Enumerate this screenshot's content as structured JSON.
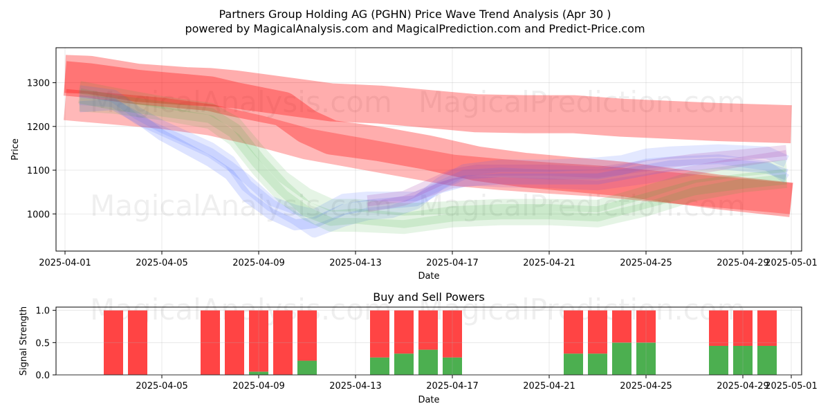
{
  "chart_data": [
    {
      "type": "area",
      "title": "Partners Group Holding AG (PGHN) Price Wave Trend Analysis (Apr 30 )",
      "subtitle": "powered by MagicalAnalysis.com and MagicalPrediction.com and Predict-Price.com",
      "xlabel": "Date",
      "ylabel": "Price",
      "x_ticks": [
        "2025-04-01",
        "2025-04-05",
        "2025-04-09",
        "2025-04-13",
        "2025-04-17",
        "2025-04-21",
        "2025-04-25",
        "2025-04-29",
        "2025-05-01"
      ],
      "y_ticks": [
        1000,
        1100,
        1200,
        1300
      ],
      "xlim_days": [
        -0.4,
        30.4
      ],
      "ylim": [
        915,
        1380
      ],
      "watermarks": [
        "MagicalAnalysis.com",
        "MagicalPrediction.com",
        "MagicalAnalysis.com",
        "MagicalPrediction.com"
      ],
      "series": [
        {
          "name": "red-wave-1",
          "color": "#ff0000",
          "opacity": 0.32,
          "width": 55,
          "x": [
            0,
            1,
            3,
            5,
            6,
            7,
            9,
            11,
            13,
            15,
            17,
            19,
            21,
            23,
            25,
            27,
            30
          ],
          "y": [
            1320,
            1318,
            1300,
            1292,
            1290,
            1285,
            1270,
            1255,
            1250,
            1240,
            1230,
            1228,
            1228,
            1220,
            1215,
            1210,
            1205
          ]
        },
        {
          "name": "red-wave-2",
          "color": "#ff0000",
          "opacity": 0.32,
          "width": 50,
          "x": [
            0,
            1,
            3,
            5,
            6,
            7,
            9,
            10,
            11,
            13,
            15,
            17,
            19,
            21,
            23,
            25,
            27,
            30
          ],
          "y": [
            1310,
            1305,
            1290,
            1280,
            1275,
            1262,
            1240,
            1200,
            1175,
            1160,
            1140,
            1115,
            1100,
            1090,
            1080,
            1065,
            1050,
            1032
          ]
        },
        {
          "name": "red-wave-3",
          "color": "#ff0000",
          "opacity": 0.28,
          "width": 45,
          "x": [
            0,
            2,
            4,
            6,
            8,
            10,
            12,
            14,
            16,
            18,
            20,
            22,
            24,
            26,
            28,
            30
          ],
          "y": [
            1250,
            1240,
            1230,
            1215,
            1190,
            1160,
            1140,
            1120,
            1100,
            1090,
            1082,
            1075,
            1065,
            1055,
            1045,
            1035
          ]
        },
        {
          "name": "blue-wave-1",
          "color": "#4466ff",
          "opacity": 0.18,
          "width": 16,
          "x": [
            0.6,
            2,
            3,
            4,
            5,
            6,
            6.8,
            7.5,
            8.5,
            9.5,
            10.3,
            11.5,
            12.5,
            13.5,
            14.5,
            15.5,
            16.5,
            18,
            20,
            22,
            23,
            24,
            25,
            27,
            29,
            29.8
          ],
          "y": [
            1245,
            1250,
            1220,
            1180,
            1150,
            1120,
            1090,
            1040,
            1000,
            975,
            980,
            1010,
            1020,
            1025,
            1030,
            1060,
            1075,
            1080,
            1080,
            1080,
            1090,
            1100,
            1110,
            1115,
            1105,
            1090
          ]
        },
        {
          "name": "blue-wave-2",
          "color": "#4466ff",
          "opacity": 0.15,
          "width": 18,
          "x": [
            0.6,
            2,
            3,
            4,
            5,
            6,
            6.8,
            7.5,
            8.5,
            9.5,
            10.3,
            11.5,
            12.5,
            13.5,
            14.5,
            15.5,
            16.5,
            18,
            20,
            22,
            23,
            24,
            25,
            27,
            29,
            29.8
          ],
          "y": [
            1280,
            1270,
            1230,
            1200,
            1175,
            1150,
            1120,
            1065,
            1020,
            990,
            960,
            985,
            1000,
            1005,
            1025,
            1070,
            1100,
            1110,
            1110,
            1115,
            1120,
            1135,
            1140,
            1145,
            1140,
            1120
          ]
        },
        {
          "name": "blue-wave-3",
          "color": "#4466ff",
          "opacity": 0.15,
          "width": 14,
          "x": [
            0.6,
            2,
            3,
            4,
            5,
            6,
            6.8,
            7.5,
            8.5,
            9.5,
            10.3,
            11.5,
            12.5,
            13.5,
            14.5,
            15.5,
            16.5,
            18,
            20,
            22,
            23,
            24,
            25,
            27,
            29,
            29.8
          ],
          "y": [
            1260,
            1255,
            1215,
            1190,
            1165,
            1140,
            1110,
            1080,
            1030,
            1010,
            1000,
            1035,
            1040,
            1040,
            1040,
            1065,
            1090,
            1095,
            1090,
            1090,
            1100,
            1115,
            1120,
            1125,
            1110,
            1080
          ]
        },
        {
          "name": "green-wave-1",
          "color": "#33aa33",
          "opacity": 0.14,
          "width": 22,
          "x": [
            0.6,
            2,
            4,
            6,
            7,
            8,
            9,
            10,
            11,
            12,
            14,
            16,
            18,
            20,
            22,
            24,
            26,
            28,
            29.8
          ],
          "y": [
            1270,
            1255,
            1240,
            1225,
            1190,
            1120,
            1060,
            1010,
            990,
            995,
            985,
            1000,
            1005,
            1005,
            1000,
            1030,
            1060,
            1075,
            1085
          ]
        },
        {
          "name": "green-wave-2",
          "color": "#33aa33",
          "opacity": 0.13,
          "width": 20,
          "x": [
            0.6,
            2,
            4,
            6,
            7,
            8,
            9,
            10,
            11,
            12,
            14,
            16,
            18,
            20,
            22,
            24,
            26,
            28,
            29.8
          ],
          "y": [
            1250,
            1245,
            1230,
            1210,
            1170,
            1100,
            1040,
            1000,
            975,
            975,
            970,
            985,
            990,
            990,
            985,
            1010,
            1045,
            1065,
            1075
          ]
        },
        {
          "name": "green-wave-3",
          "color": "#33aa33",
          "opacity": 0.13,
          "width": 18,
          "x": [
            0.6,
            2,
            4,
            6,
            7,
            8,
            9,
            10,
            11,
            12,
            14,
            16,
            18,
            20,
            22,
            24,
            26,
            28,
            29.8
          ],
          "y": [
            1290,
            1275,
            1255,
            1240,
            1210,
            1145,
            1085,
            1045,
            1020,
            1020,
            1010,
            1015,
            1020,
            1020,
            1018,
            1050,
            1085,
            1100,
            1110
          ]
        },
        {
          "name": "purple-wave-1",
          "color": "#aa44aa",
          "opacity": 0.2,
          "width": 16,
          "x": [
            12.5,
            14,
            15,
            16,
            17,
            18,
            20,
            22,
            24,
            26,
            28,
            29.8
          ],
          "y": [
            1030,
            1040,
            1065,
            1090,
            1100,
            1100,
            1100,
            1095,
            1110,
            1125,
            1135,
            1145
          ]
        },
        {
          "name": "purple-wave-2",
          "color": "#aa44aa",
          "opacity": 0.18,
          "width": 14,
          "x": [
            12.5,
            14,
            15,
            16,
            17,
            18,
            20,
            22,
            24,
            26,
            28,
            29.8
          ],
          "y": [
            1015,
            1030,
            1050,
            1070,
            1075,
            1072,
            1070,
            1065,
            1080,
            1100,
            1120,
            1135
          ]
        }
      ]
    },
    {
      "type": "bar",
      "title": "Buy and Sell Powers",
      "xlabel": "Date",
      "ylabel": "Signal Strength",
      "x_ticks": [
        "2025-04-05",
        "2025-04-09",
        "2025-04-13",
        "2025-04-17",
        "2025-04-21",
        "2025-04-25",
        "2025-04-29",
        "2025-05-01"
      ],
      "y_ticks": [
        "0.0",
        "0.5",
        "1.0"
      ],
      "ylim": [
        0,
        1.05
      ],
      "buy_color": "#4caf50",
      "sell_color": "#ff4444",
      "bars": [
        {
          "date": "2025-04-03",
          "buy": 0.0,
          "sell": 1.0
        },
        {
          "date": "2025-04-04",
          "buy": 0.0,
          "sell": 1.0
        },
        {
          "date": "2025-04-07",
          "buy": 0.0,
          "sell": 1.0
        },
        {
          "date": "2025-04-08",
          "buy": 0.0,
          "sell": 1.0
        },
        {
          "date": "2025-04-09",
          "buy": 0.05,
          "sell": 0.95
        },
        {
          "date": "2025-04-10",
          "buy": 0.0,
          "sell": 1.0
        },
        {
          "date": "2025-04-11",
          "buy": 0.22,
          "sell": 0.78
        },
        {
          "date": "2025-04-14",
          "buy": 0.27,
          "sell": 0.73
        },
        {
          "date": "2025-04-15",
          "buy": 0.33,
          "sell": 0.67
        },
        {
          "date": "2025-04-16",
          "buy": 0.39,
          "sell": 0.61
        },
        {
          "date": "2025-04-17",
          "buy": 0.27,
          "sell": 0.73
        },
        {
          "date": "2025-04-22",
          "buy": 0.33,
          "sell": 0.67
        },
        {
          "date": "2025-04-23",
          "buy": 0.33,
          "sell": 0.67
        },
        {
          "date": "2025-04-24",
          "buy": 0.5,
          "sell": 0.5
        },
        {
          "date": "2025-04-25",
          "buy": 0.5,
          "sell": 0.5
        },
        {
          "date": "2025-04-28",
          "buy": 0.45,
          "sell": 0.55
        },
        {
          "date": "2025-04-29",
          "buy": 0.45,
          "sell": 0.55
        },
        {
          "date": "2025-04-30",
          "buy": 0.45,
          "sell": 0.55
        }
      ]
    }
  ]
}
